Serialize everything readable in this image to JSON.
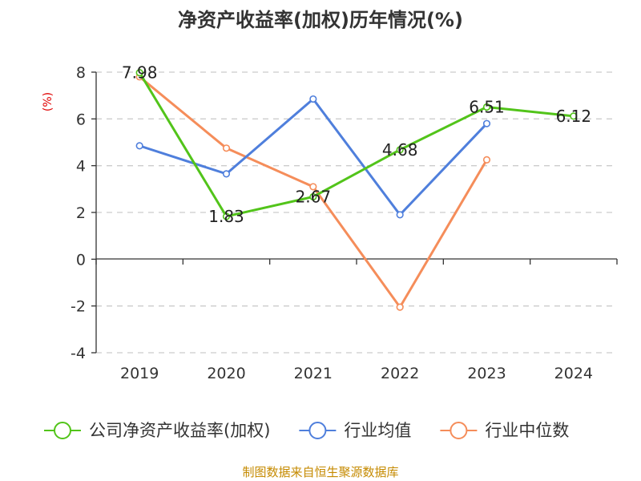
{
  "chart_data": {
    "type": "line",
    "title": "净资产收益率(加权)历年情况(%)",
    "ylabel": "(%)",
    "categories": [
      "2019",
      "2020",
      "2021",
      "2022",
      "2023",
      "2024"
    ],
    "ylim": [
      -4,
      8
    ],
    "yticks": [
      8,
      6,
      4,
      2,
      0,
      -2,
      -4
    ],
    "grid": true,
    "legend_position": "bottom",
    "series": [
      {
        "name": "公司净资产收益率(加权)",
        "color": "#52c41a",
        "values": [
          7.98,
          1.83,
          2.67,
          4.68,
          6.51,
          6.12
        ],
        "labels": [
          "7.98",
          "1.83",
          "2.67",
          "4.68",
          "6.51",
          "6.12"
        ]
      },
      {
        "name": "行业均值",
        "color": "#4f7fdc",
        "values": [
          4.85,
          3.65,
          6.85,
          1.9,
          5.8,
          null
        ]
      },
      {
        "name": "行业中位数",
        "color": "#f58d5a",
        "values": [
          7.8,
          4.75,
          3.1,
          -2.05,
          4.25,
          null
        ]
      }
    ]
  },
  "source": "制图数据来自恒生聚源数据库"
}
